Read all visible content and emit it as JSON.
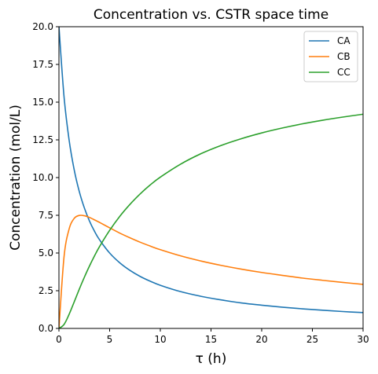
{
  "chart_data": {
    "type": "line",
    "title": "Concentration vs. CSTR space time",
    "xlabel": "τ (h)",
    "ylabel": "Concentration (mol/L)",
    "xlim": [
      0,
      30
    ],
    "ylim": [
      0,
      20
    ],
    "xticks": [
      0,
      5,
      10,
      15,
      20,
      25,
      30
    ],
    "xtick_labels": [
      "0",
      "5",
      "10",
      "15",
      "20",
      "25",
      "30"
    ],
    "yticks": [
      0,
      2.5,
      5,
      7.5,
      10,
      12.5,
      15,
      17.5,
      20
    ],
    "ytick_labels": [
      "0.0",
      "2.5",
      "5.0",
      "7.5",
      "10.0",
      "12.5",
      "15.0",
      "17.5",
      "20.0"
    ],
    "grid": false,
    "legend_position": "top-right",
    "x": [
      0,
      0.5,
      1,
      1.5,
      2,
      2.5,
      3,
      3.5,
      4,
      5,
      6,
      7,
      8,
      9,
      10,
      12,
      14,
      16,
      18,
      20,
      22,
      24,
      26,
      28,
      30
    ],
    "series": [
      {
        "name": "CA",
        "color": "#1f77b4",
        "values": [
          20.0,
          15.38,
          12.5,
          10.53,
          9.09,
          8.0,
          7.14,
          6.45,
          5.88,
          5.0,
          4.35,
          3.85,
          3.45,
          3.13,
          2.86,
          2.44,
          2.13,
          1.89,
          1.69,
          1.54,
          1.41,
          1.3,
          1.21,
          1.12,
          1.05
        ]
      },
      {
        "name": "CB",
        "color": "#ff7f0e",
        "values": [
          0,
          4.73,
          6.58,
          7.29,
          7.49,
          7.47,
          7.36,
          7.2,
          7.03,
          6.67,
          6.32,
          6.01,
          5.72,
          5.46,
          5.22,
          4.81,
          4.47,
          4.18,
          3.93,
          3.71,
          3.52,
          3.34,
          3.19,
          3.05,
          2.92
        ]
      },
      {
        "name": "CC",
        "color": "#2ca02c",
        "values": [
          0,
          0.26,
          0.93,
          1.75,
          2.59,
          3.38,
          4.12,
          4.8,
          5.42,
          6.5,
          7.43,
          8.22,
          8.91,
          9.51,
          10.03,
          10.89,
          11.58,
          12.13,
          12.58,
          12.96,
          13.28,
          13.56,
          13.8,
          14.01,
          14.2
        ]
      }
    ]
  }
}
